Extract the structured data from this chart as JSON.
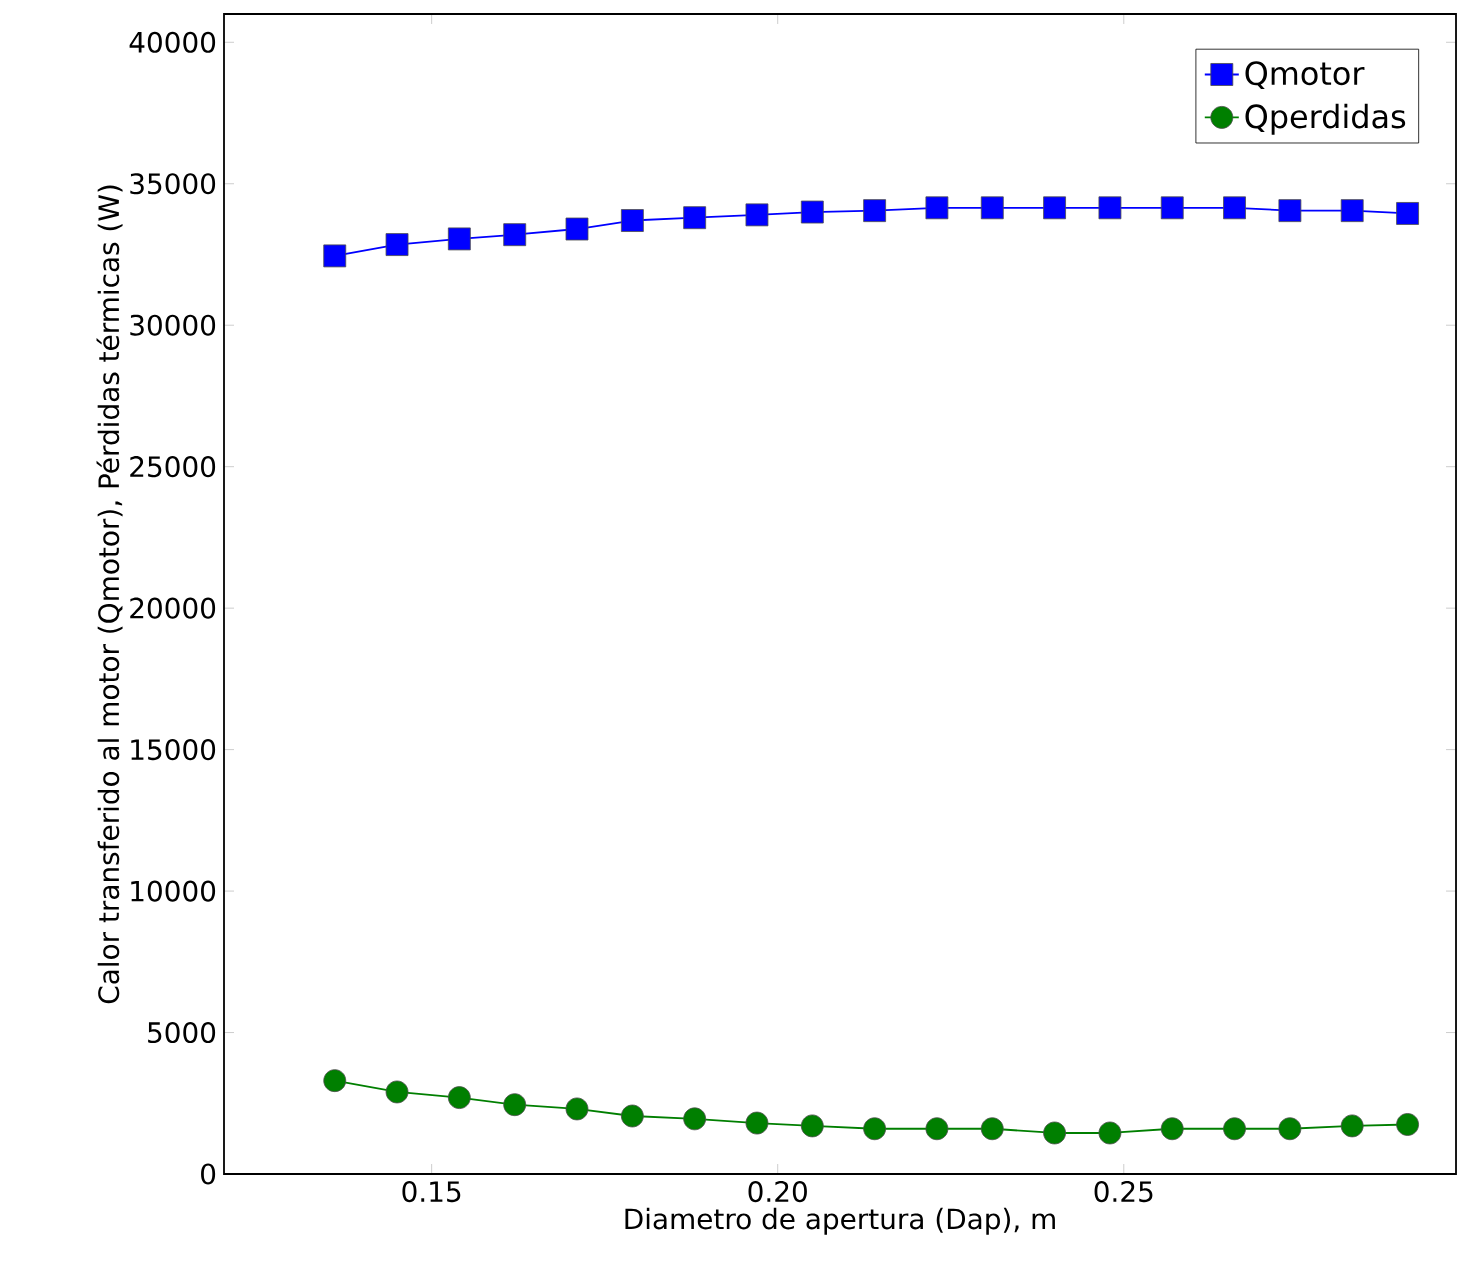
{
  "chart_data": {
    "type": "line",
    "xlabel": "Diametro de apertura (Dap), m",
    "ylabel": "Calor transferido al motor (Qmotor), Pérdidas térmicas (W)",
    "x": [
      0.136,
      0.145,
      0.154,
      0.162,
      0.171,
      0.179,
      0.188,
      0.197,
      0.205,
      0.214,
      0.223,
      0.231,
      0.24,
      0.248,
      0.257,
      0.266,
      0.274,
      0.283,
      0.291
    ],
    "series": [
      {
        "name": "Qmotor",
        "color": "#0000ff",
        "marker": "square",
        "values": [
          32450,
          32850,
          33050,
          33200,
          33400,
          33700,
          33800,
          33900,
          34000,
          34050,
          34150,
          34150,
          34150,
          34150,
          34150,
          34150,
          34050,
          34050,
          33950
        ]
      },
      {
        "name": "Qperdidas",
        "color": "#007f00",
        "marker": "circle",
        "values": [
          3300,
          2900,
          2700,
          2450,
          2300,
          2050,
          1950,
          1800,
          1700,
          1600,
          1600,
          1600,
          1450,
          1450,
          1600,
          1600,
          1600,
          1700,
          1750
        ]
      }
    ],
    "xlim": [
      0.12,
      0.298
    ],
    "ylim": [
      0,
      41000
    ],
    "xticks": [
      {
        "value": 0.15,
        "label": "0.15"
      },
      {
        "value": 0.2,
        "label": "0.20"
      },
      {
        "value": 0.25,
        "label": "0.25"
      }
    ],
    "yticks": [
      0,
      5000,
      10000,
      15000,
      20000,
      25000,
      30000,
      35000,
      40000
    ],
    "grid": false,
    "legend": "top right"
  }
}
